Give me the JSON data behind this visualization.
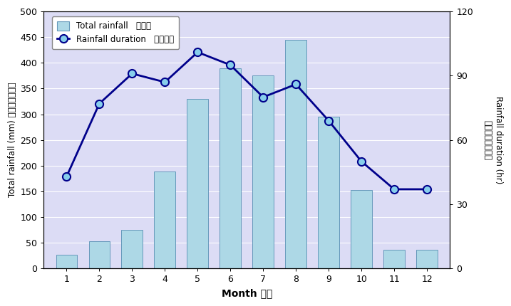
{
  "months": [
    1,
    2,
    3,
    4,
    5,
    6,
    7,
    8,
    9,
    10,
    11,
    12
  ],
  "month_labels": [
    "1",
    "2",
    "3",
    "4",
    "5",
    "6",
    "7",
    "8",
    "9",
    "10",
    "11",
    "12"
  ],
  "total_rainfall": [
    27,
    53,
    75,
    188,
    330,
    390,
    375,
    445,
    295,
    153,
    36,
    36
  ],
  "rainfall_duration": [
    43,
    77,
    91,
    87,
    101,
    95,
    80,
    86,
    69,
    50,
    37,
    37
  ],
  "bar_color": "#ADD8E6",
  "bar_edge_color": "#6699BB",
  "line_color": "#00008B",
  "marker_face_color": "#87CEEB",
  "marker_edge_color": "#00008B",
  "plot_bg_color": "#DCDCF5",
  "fig_bg_color": "#FFFFFF",
  "ylabel_left": "Total rainfall (mm) 總雨量（毫米）",
  "ylabel_right_en": "Rainfall duration (hr)",
  "ylabel_right_cn": "降雨時間（小時）",
  "xlabel": "Month 月份",
  "ylim_left": [
    0,
    500
  ],
  "ylim_right": [
    0,
    120
  ],
  "yticks_left": [
    0,
    50,
    100,
    150,
    200,
    250,
    300,
    350,
    400,
    450,
    500
  ],
  "yticks_right": [
    0,
    30,
    60,
    90,
    120
  ],
  "legend_label_bar": "Total rainfall   總雨量",
  "legend_label_line": "Rainfall duration   降雨時間",
  "figsize": [
    7.17,
    4.3
  ],
  "dpi": 100
}
